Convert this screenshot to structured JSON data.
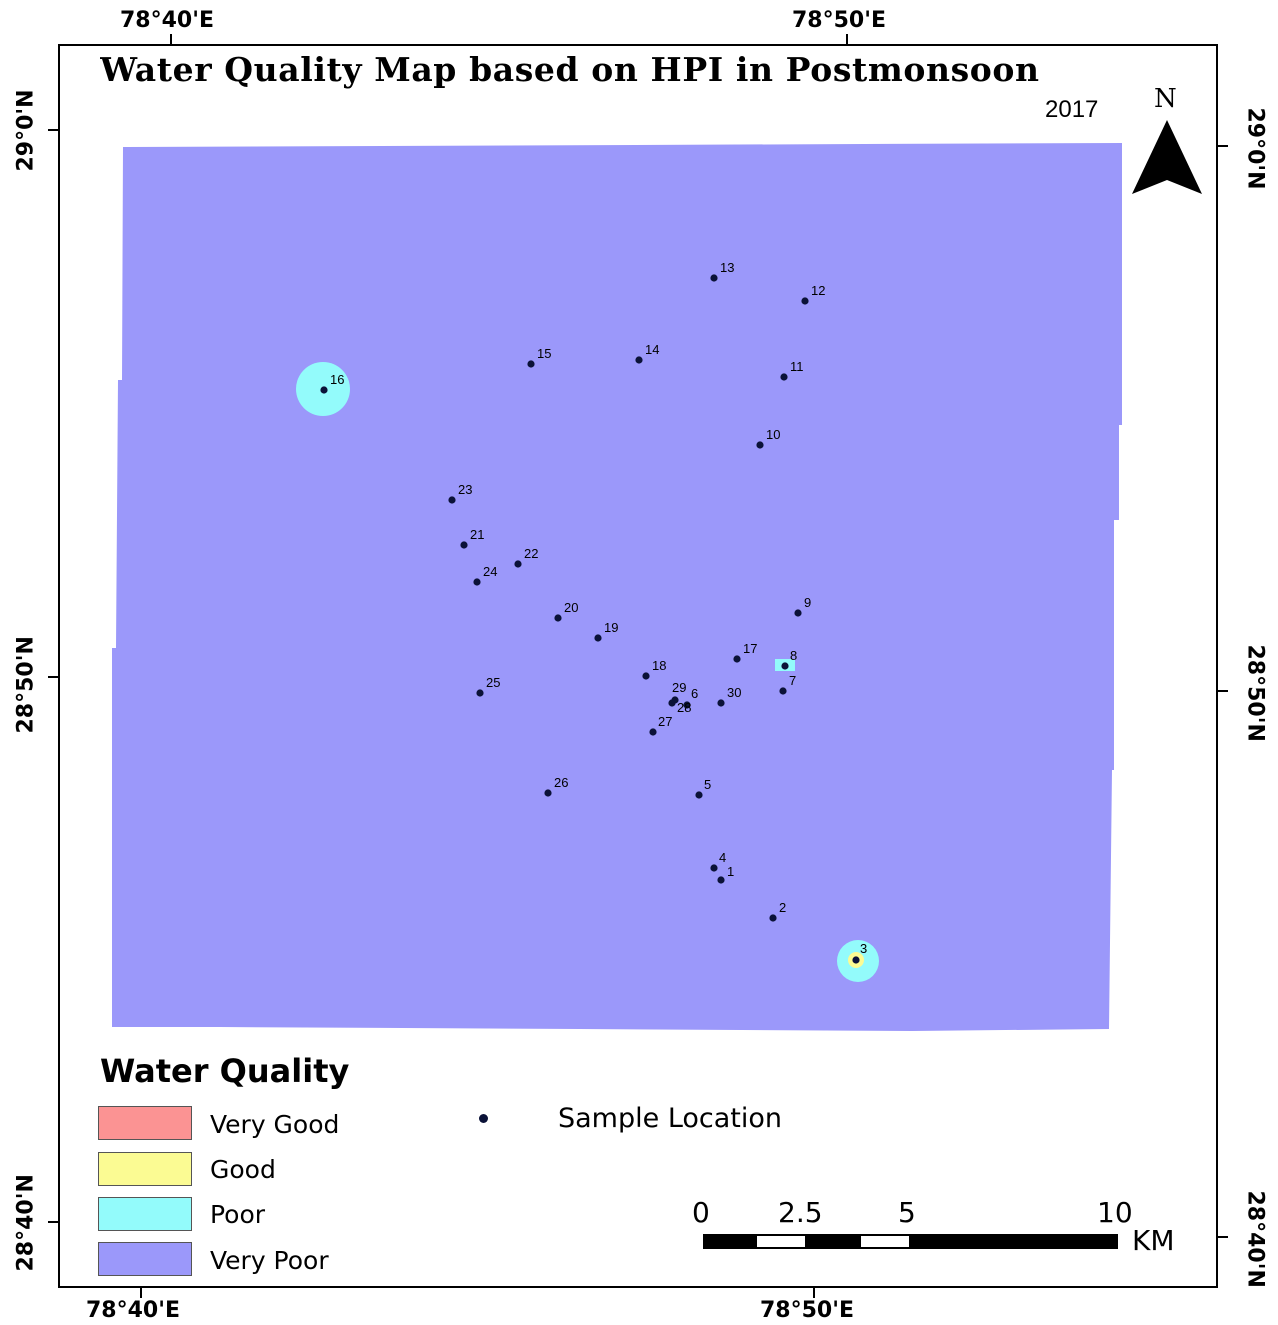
{
  "title": "Water Quality Map based on HPI in Postmonsoon",
  "year": "2017",
  "north_label": "N",
  "coords": {
    "top_left": "78°40'E",
    "top_right": "78°50'E",
    "bottom_left": "78°40'E",
    "bottom_right": "78°50'E",
    "left_top": "29°0'N",
    "left_mid": "28°50'N",
    "left_bottom": "28°40'N",
    "right_top": "29°0'N",
    "right_mid": "28°50'N",
    "right_bottom": "28°40'N"
  },
  "colors": {
    "very_good": "#fb9393",
    "good": "#fbfb93",
    "poor": "#93fbfb",
    "very_poor": "#9b98fa",
    "sample_dot": "#0b1238"
  },
  "legend": {
    "title": "Water Quality",
    "items": [
      {
        "label": "Very Good",
        "color": "#fb9393"
      },
      {
        "label": "Good",
        "color": "#fbfb93"
      },
      {
        "label": "Poor",
        "color": "#93fbfb"
      },
      {
        "label": "Very Poor",
        "color": "#9b98fa"
      }
    ],
    "sample_label": "Sample Location"
  },
  "scale_bar": {
    "labels": [
      "0",
      "2.5",
      "5",
      "10"
    ],
    "unit": "KM"
  },
  "sample_points": [
    "13",
    "12",
    "15",
    "14",
    "11",
    "16",
    "10",
    "23",
    "21",
    "22",
    "24",
    "20",
    "9",
    "19",
    "17",
    "8",
    "18",
    "25",
    "29",
    "6",
    "30",
    "7",
    "28",
    "27",
    "26",
    "5",
    "4",
    "1",
    "2",
    "3"
  ]
}
